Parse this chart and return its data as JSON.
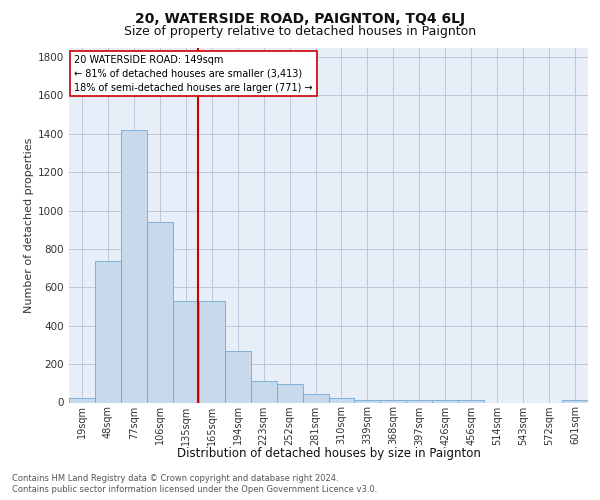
{
  "title": "20, WATERSIDE ROAD, PAIGNTON, TQ4 6LJ",
  "subtitle": "Size of property relative to detached houses in Paignton",
  "xlabel": "Distribution of detached houses by size in Paignton",
  "ylabel": "Number of detached properties",
  "footnote1": "Contains HM Land Registry data © Crown copyright and database right 2024.",
  "footnote2": "Contains public sector information licensed under the Open Government Licence v3.0.",
  "bin_labels": [
    "19sqm",
    "48sqm",
    "77sqm",
    "106sqm",
    "135sqm",
    "165sqm",
    "194sqm",
    "223sqm",
    "252sqm",
    "281sqm",
    "310sqm",
    "339sqm",
    "368sqm",
    "397sqm",
    "426sqm",
    "456sqm",
    "514sqm",
    "543sqm",
    "572sqm",
    "601sqm"
  ],
  "bar_heights": [
    25,
    740,
    1420,
    940,
    530,
    530,
    270,
    110,
    95,
    45,
    25,
    15,
    15,
    15,
    15,
    15,
    0,
    0,
    0,
    15
  ],
  "bar_color": "#c9d9ec",
  "bar_edge_color": "#6fa8d6",
  "vline_color": "#cc0000",
  "vline_bar_index": 4.48,
  "annotation_text": "20 WATERSIDE ROAD: 149sqm\n← 81% of detached houses are smaller (3,413)\n18% of semi-detached houses are larger (771) →",
  "annotation_box_color": "#ffffff",
  "annotation_box_edge": "#cc0000",
  "ylim": [
    0,
    1850
  ],
  "yticks": [
    0,
    200,
    400,
    600,
    800,
    1000,
    1200,
    1400,
    1600,
    1800
  ],
  "grid_color": "#bbc8da",
  "background_color": "#e8eef8",
  "title_fontsize": 10,
  "subtitle_fontsize": 9,
  "ylabel_fontsize": 8,
  "xlabel_fontsize": 8.5,
  "tick_fontsize": 7,
  "annotation_fontsize": 7,
  "footnote_fontsize": 6
}
